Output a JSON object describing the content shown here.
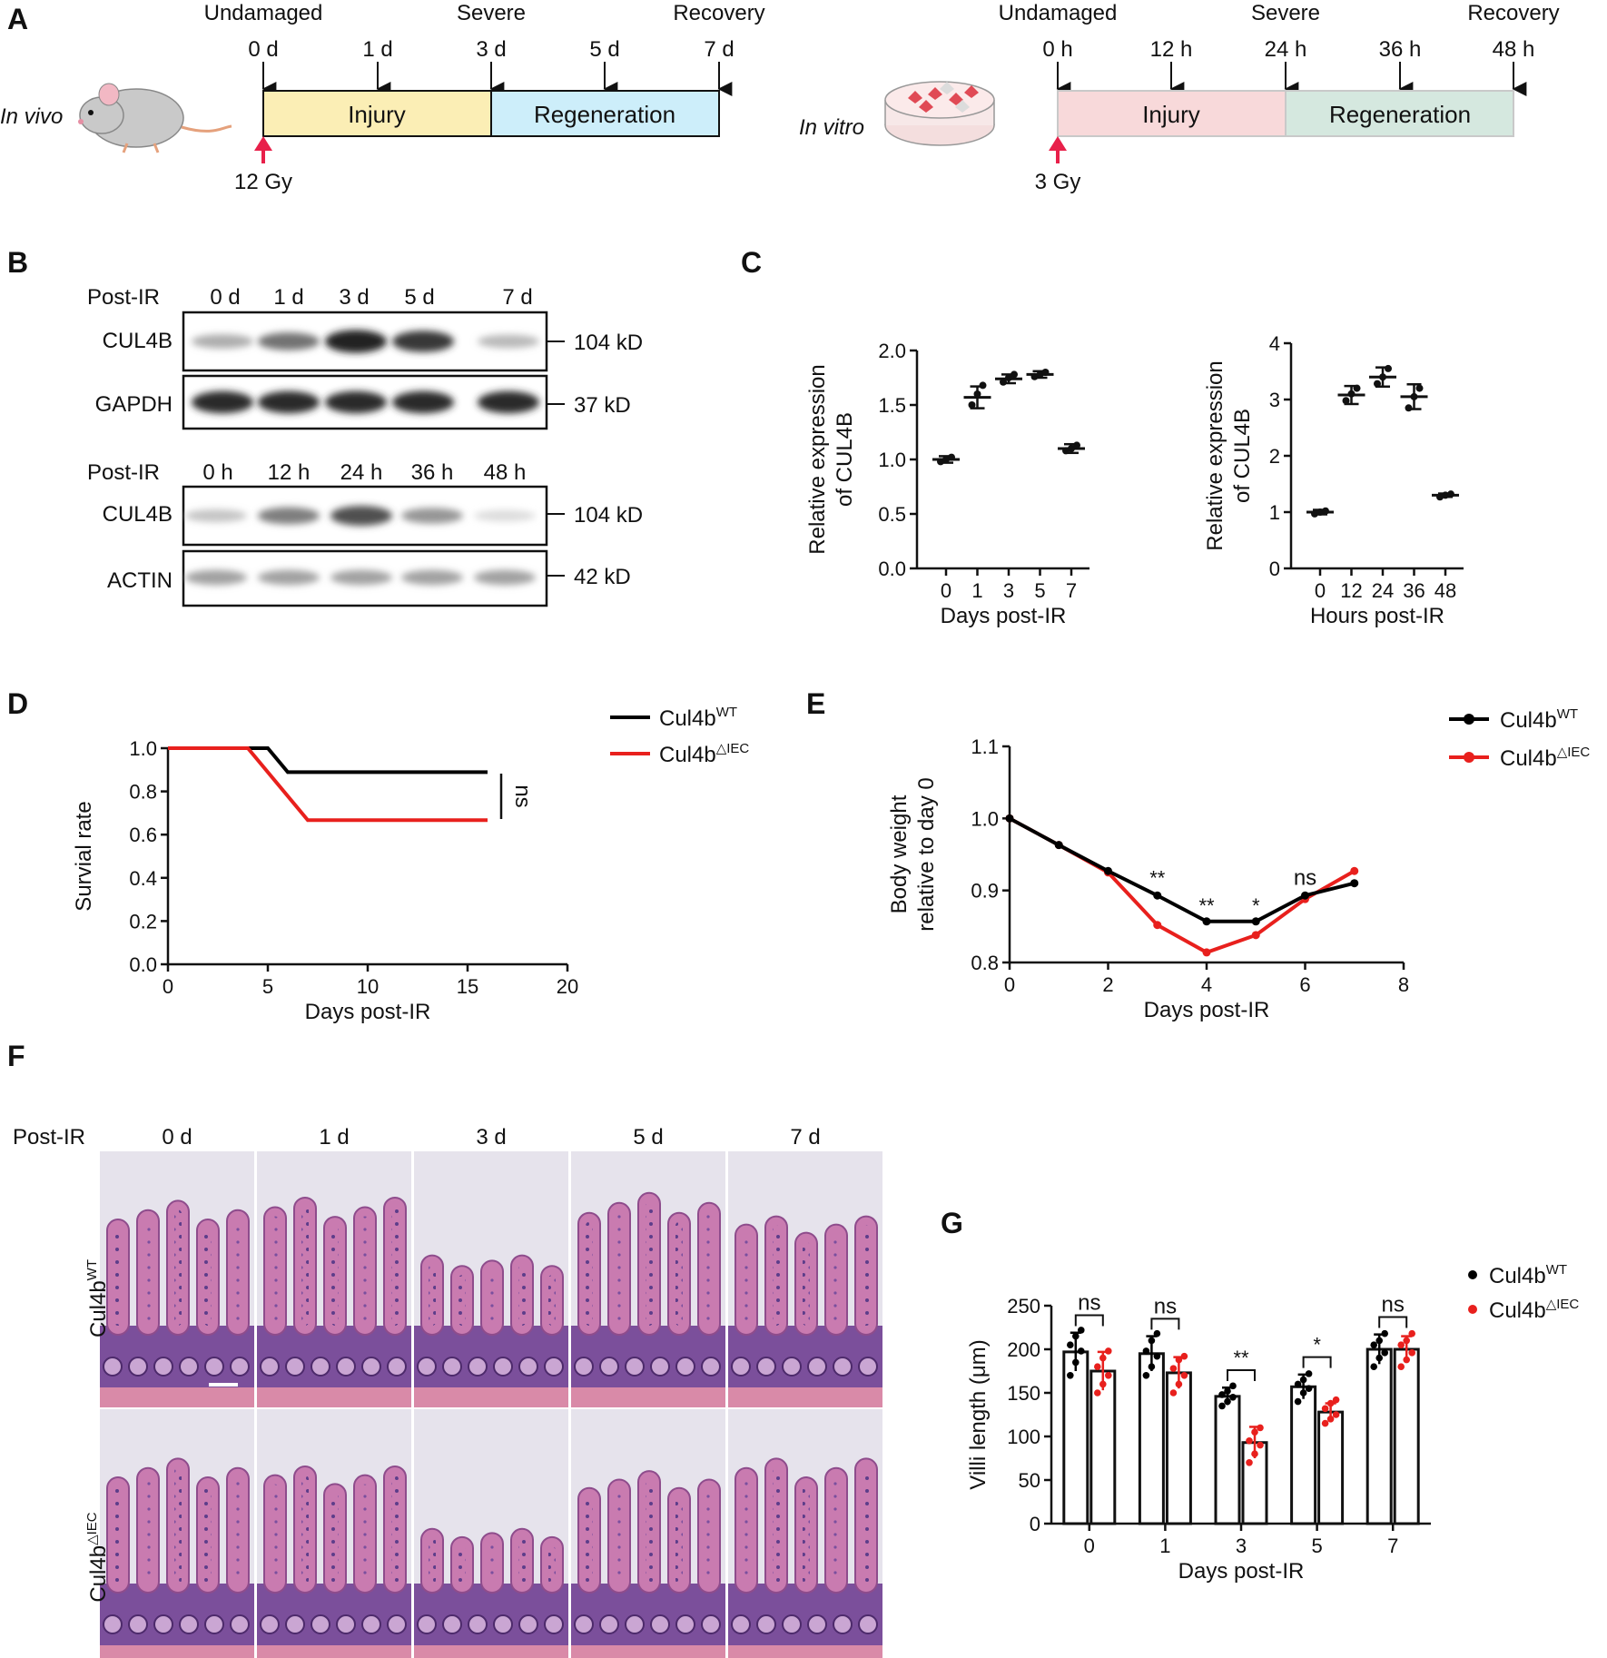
{
  "panels": {
    "A": "A",
    "B": "B",
    "C": "C",
    "D": "D",
    "E": "E",
    "F": "F",
    "G": "G"
  },
  "panelA": {
    "vivo": {
      "label": "In vivo",
      "phase_labels": [
        "Undamaged",
        "Severe",
        "Recovery"
      ],
      "ticks": [
        "0 d",
        "1 d",
        "3 d",
        "5 d",
        "7 d"
      ],
      "injury": "Injury",
      "regeneration": "Regeneration",
      "dose": "12 Gy",
      "colors": {
        "injury": "#fbeeb5",
        "regeneration": "#cdeefa"
      }
    },
    "vitro": {
      "label": "In vitro",
      "phase_labels": [
        "Undamaged",
        "Severe",
        "Recovery"
      ],
      "ticks": [
        "0 h",
        "12 h",
        "24 h",
        "36 h",
        "48 h"
      ],
      "injury": "Injury",
      "regeneration": "Regeneration",
      "dose": "3 Gy",
      "colors": {
        "injury": "#f8d9da",
        "regeneration": "#d5e8df"
      }
    }
  },
  "panelB": {
    "top": {
      "header": "Post-IR",
      "lanes": [
        "0 d",
        "1 d",
        "3 d",
        "5 d",
        "7 d"
      ],
      "rows": [
        {
          "name": "CUL4B",
          "size": "104 kD",
          "intensity": [
            0.35,
            0.6,
            0.95,
            0.85,
            0.3
          ]
        },
        {
          "name": "GAPDH",
          "size": "37 kD",
          "intensity": [
            0.9,
            0.9,
            0.9,
            0.9,
            0.9
          ]
        }
      ]
    },
    "bottom": {
      "header": "Post-IR",
      "lanes": [
        "0 h",
        "12 h",
        "24 h",
        "36 h",
        "48 h"
      ],
      "rows": [
        {
          "name": "CUL4B",
          "size": "104 kD",
          "intensity": [
            0.25,
            0.55,
            0.75,
            0.45,
            0.15
          ]
        },
        {
          "name": "ACTIN",
          "size": "42 kD",
          "intensity": [
            0.4,
            0.4,
            0.4,
            0.4,
            0.4
          ]
        }
      ]
    }
  },
  "panelD": {
    "legend": [
      {
        "base": "Cul4b",
        "sup": "WT",
        "color": "#000000"
      },
      {
        "base": "Cul4b",
        "sup": "△IEC",
        "color": "#e8201d"
      }
    ],
    "significance": "ns"
  },
  "panelE": {
    "legend": [
      {
        "base": "Cul4b",
        "sup": "WT",
        "color": "#000000"
      },
      {
        "base": "Cul4b",
        "sup": "△IEC",
        "color": "#e8201d"
      }
    ],
    "annotations": [
      {
        "x": 3,
        "text": "**",
        "y": 0.9
      },
      {
        "x": 4,
        "text": "**",
        "y": 0.862
      },
      {
        "x": 5,
        "text": "*",
        "y": 0.862
      },
      {
        "x": 6,
        "text": "ns",
        "y": 0.9
      }
    ]
  },
  "panelF": {
    "header": "Post-IR",
    "columns": [
      "0 d",
      "1 d",
      "3 d",
      "5 d",
      "7 d"
    ],
    "rows": [
      {
        "base": "Cul4b",
        "sup": "WT"
      },
      {
        "base": "Cul4b",
        "sup": "△IEC"
      }
    ]
  },
  "panelG": {
    "legend": [
      {
        "base": "Cul4b",
        "sup": "WT",
        "color": "#000000"
      },
      {
        "base": "Cul4b",
        "sup": "△IEC",
        "color": "#e8201d"
      }
    ]
  },
  "chart_data": [
    {
      "id": "C-left",
      "type": "scatter",
      "xlabel": "Days post-IR",
      "ylabel": "Relative expression of CUL4B",
      "ylabel_lines": [
        "Relative expression",
        "of CUL4B"
      ],
      "categories": [
        "0",
        "1",
        "3",
        "5",
        "7"
      ],
      "points": [
        [
          0.98,
          1.0,
          1.02
        ],
        [
          1.5,
          1.6,
          1.68
        ],
        [
          1.71,
          1.75,
          1.78
        ],
        [
          1.76,
          1.78,
          1.8
        ],
        [
          1.08,
          1.1,
          1.13
        ]
      ],
      "means": [
        1.0,
        1.57,
        1.74,
        1.78,
        1.1
      ],
      "sd": [
        0.03,
        0.1,
        0.04,
        0.03,
        0.04
      ],
      "ylim": [
        0,
        2.0
      ],
      "yticks": [
        "0.0",
        "0.5",
        "1.0",
        "1.5",
        "2.0"
      ]
    },
    {
      "id": "C-right",
      "type": "scatter",
      "xlabel": "Hours post-IR",
      "ylabel": "Relative expression of CUL4B",
      "ylabel_lines": [
        "Relative expression",
        "of CUL4B"
      ],
      "categories": [
        "0",
        "12",
        "24",
        "36",
        "48"
      ],
      "points": [
        [
          0.97,
          1.0,
          1.02
        ],
        [
          2.98,
          3.1,
          3.2
        ],
        [
          3.28,
          3.4,
          3.55
        ],
        [
          2.85,
          3.05,
          3.2
        ],
        [
          1.27,
          1.3,
          1.32
        ]
      ],
      "means": [
        1.0,
        3.08,
        3.4,
        3.05,
        1.3
      ],
      "sd": [
        0.04,
        0.16,
        0.17,
        0.22,
        0.03
      ],
      "ylim": [
        0,
        4
      ],
      "yticks": [
        "0",
        "1",
        "2",
        "3",
        "4"
      ]
    },
    {
      "id": "D",
      "type": "line",
      "step": true,
      "xlabel": "Days post-IR",
      "ylabel": "Survial rate",
      "xlim": [
        0,
        20
      ],
      "ylim": [
        0,
        1.0
      ],
      "xticks": [
        "0",
        "5",
        "10",
        "15",
        "20"
      ],
      "yticks": [
        "0.0",
        "0.2",
        "0.4",
        "0.6",
        "0.8",
        "1.0"
      ],
      "series": [
        {
          "name": "Cul4b WT",
          "color": "#000000",
          "x": [
            0,
            5,
            6,
            16
          ],
          "y": [
            1.0,
            1.0,
            0.889,
            0.889
          ]
        },
        {
          "name": "Cul4b △IEC",
          "color": "#e8201d",
          "x": [
            0,
            4,
            7,
            16
          ],
          "y": [
            1.0,
            1.0,
            0.667,
            0.667
          ]
        }
      ]
    },
    {
      "id": "E",
      "type": "line",
      "xlabel": "Days post-IR",
      "ylabel": "Body weight relative to day 0",
      "ylabel_lines": [
        "Body weight",
        "relative to day 0"
      ],
      "xlim": [
        0,
        8
      ],
      "ylim": [
        0.8,
        1.1
      ],
      "xticks": [
        "0",
        "2",
        "4",
        "6",
        "8"
      ],
      "yticks": [
        "0.8",
        "0.9",
        "1.0",
        "1.1"
      ],
      "series": [
        {
          "name": "Cul4b WT",
          "color": "#000000",
          "x": [
            0,
            1,
            2,
            3,
            4,
            5,
            6,
            7
          ],
          "y": [
            1.0,
            0.963,
            0.927,
            0.893,
            0.857,
            0.857,
            0.893,
            0.91
          ]
        },
        {
          "name": "Cul4b △IEC",
          "color": "#e8201d",
          "x": [
            0,
            1,
            2,
            3,
            4,
            5,
            6,
            7
          ],
          "y": [
            1.0,
            0.963,
            0.925,
            0.852,
            0.814,
            0.838,
            0.888,
            0.927
          ]
        }
      ]
    },
    {
      "id": "G",
      "type": "bar",
      "xlabel": "Days post-IR",
      "ylabel": "Villi length (μm)",
      "categories": [
        "0",
        "1",
        "3",
        "5",
        "7"
      ],
      "ylim": [
        0,
        250
      ],
      "yticks": [
        "0",
        "50",
        "100",
        "150",
        "200",
        "250"
      ],
      "series": [
        {
          "name": "Cul4b WT",
          "color": "#000000",
          "values": [
            197,
            195,
            146,
            157,
            200
          ],
          "sd": [
            22,
            20,
            10,
            14,
            17
          ],
          "points": [
            [
              170,
              185,
              198,
              205,
              215,
              222
            ],
            [
              170,
              180,
              192,
              198,
              210,
              218
            ],
            [
              135,
              140,
              145,
              148,
              152,
              158
            ],
            [
              140,
              150,
              155,
              160,
              165,
              172
            ],
            [
              180,
              190,
              196,
              205,
              210,
              218
            ]
          ]
        },
        {
          "name": "Cul4b △IEC",
          "color": "#e8201d",
          "values": [
            175,
            173,
            93,
            128,
            200
          ],
          "sd": [
            22,
            18,
            18,
            10,
            15
          ],
          "points": [
            [
              150,
              160,
              170,
              180,
              190,
              198
            ],
            [
              150,
              160,
              170,
              178,
              188,
              192
            ],
            [
              70,
              80,
              90,
              95,
              105,
              110
            ],
            [
              115,
              120,
              125,
              132,
              138,
              142
            ],
            [
              180,
              188,
              196,
              205,
              210,
              218
            ]
          ]
        }
      ],
      "significance": [
        "ns",
        "ns",
        "**",
        "*",
        "ns"
      ]
    }
  ]
}
